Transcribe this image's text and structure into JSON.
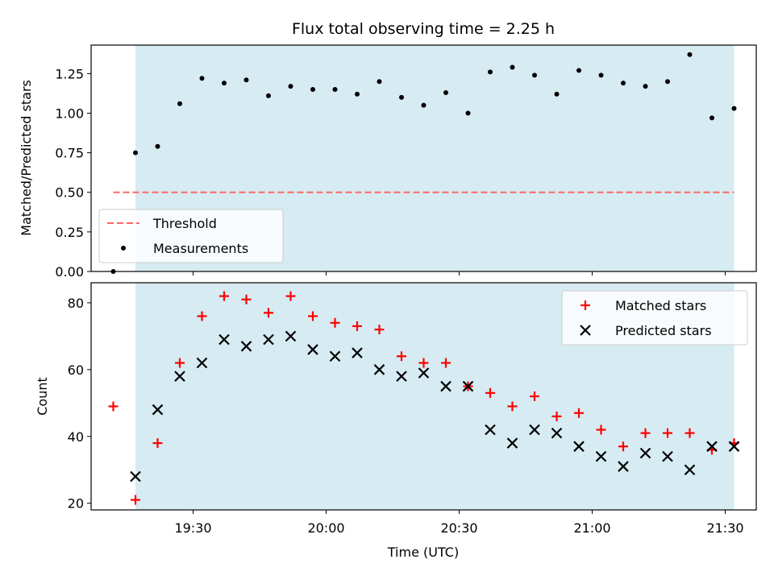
{
  "chart_data": [
    {
      "type": "scatter",
      "title": "Flux total observing time = 2.25 h",
      "xlabel": "",
      "ylabel": "Matched/Predicted stars",
      "xlim": [
        "19:07",
        "21:37"
      ],
      "ylim": [
        0,
        1.43
      ],
      "grid": false,
      "shaded_span": {
        "start": "19:17",
        "end": "21:32",
        "color": "#add8e6"
      },
      "yticks": [
        "0.00",
        "0.25",
        "0.50",
        "0.75",
        "1.00",
        "1.25"
      ],
      "xticks": [
        "19:30",
        "20:00",
        "20:30",
        "21:00",
        "21:30"
      ],
      "threshold": {
        "name": "Threshold",
        "value": 0.5,
        "x_start": "19:12",
        "x_end": "21:32",
        "color": "#ff6666"
      },
      "series": [
        {
          "name": "Measurements",
          "color": "#000000",
          "marker": "dot",
          "x": [
            "19:12",
            "19:17",
            "19:22",
            "19:27",
            "19:32",
            "19:37",
            "19:42",
            "19:47",
            "19:52",
            "19:57",
            "20:02",
            "20:07",
            "20:12",
            "20:17",
            "20:22",
            "20:27",
            "20:32",
            "20:37",
            "20:42",
            "20:47",
            "20:52",
            "20:57",
            "21:02",
            "21:07",
            "21:12",
            "21:17",
            "21:22",
            "21:27",
            "21:32"
          ],
          "values": [
            0.0,
            0.75,
            0.79,
            1.06,
            1.22,
            1.19,
            1.21,
            1.11,
            1.17,
            1.15,
            1.15,
            1.12,
            1.2,
            1.1,
            1.05,
            1.13,
            1.0,
            1.26,
            1.29,
            1.24,
            1.12,
            1.27,
            1.24,
            1.19,
            1.17,
            1.2,
            1.37,
            0.97,
            1.03
          ]
        }
      ],
      "legend": {
        "placement": "lower-left"
      }
    },
    {
      "type": "scatter",
      "title": "",
      "xlabel": "Time (UTC)",
      "ylabel": "Count",
      "xlim": [
        "19:07",
        "21:37"
      ],
      "ylim": [
        18,
        86
      ],
      "grid": false,
      "shaded_span": {
        "start": "19:17",
        "end": "21:32",
        "color": "#add8e6"
      },
      "yticks": [
        "20",
        "40",
        "60",
        "80"
      ],
      "xticks": [
        "19:30",
        "20:00",
        "20:30",
        "21:00",
        "21:30"
      ],
      "series": [
        {
          "name": "Matched stars",
          "color": "#ff0000",
          "marker": "plus",
          "x": [
            "19:12",
            "19:17",
            "19:22",
            "19:27",
            "19:32",
            "19:37",
            "19:42",
            "19:47",
            "19:52",
            "19:57",
            "20:02",
            "20:07",
            "20:12",
            "20:17",
            "20:22",
            "20:27",
            "20:32",
            "20:37",
            "20:42",
            "20:47",
            "20:52",
            "20:57",
            "21:02",
            "21:07",
            "21:12",
            "21:17",
            "21:22",
            "21:27",
            "21:32"
          ],
          "values": [
            49,
            21,
            38,
            62,
            76,
            82,
            81,
            77,
            82,
            76,
            74,
            73,
            72,
            64,
            62,
            62,
            55,
            53,
            49,
            52,
            46,
            47,
            42,
            37,
            41,
            41,
            41,
            36,
            38
          ]
        },
        {
          "name": "Predicted stars",
          "color": "#000000",
          "marker": "x",
          "x": [
            "19:17",
            "19:22",
            "19:27",
            "19:32",
            "19:37",
            "19:42",
            "19:47",
            "19:52",
            "19:57",
            "20:02",
            "20:07",
            "20:12",
            "20:17",
            "20:22",
            "20:27",
            "20:32",
            "20:37",
            "20:42",
            "20:47",
            "20:52",
            "20:57",
            "21:02",
            "21:07",
            "21:12",
            "21:17",
            "21:22",
            "21:27",
            "21:32"
          ],
          "values": [
            28,
            48,
            58,
            62,
            69,
            67,
            69,
            70,
            66,
            64,
            65,
            60,
            58,
            59,
            55,
            55,
            42,
            38,
            42,
            41,
            37,
            34,
            31,
            35,
            34,
            30,
            37,
            37
          ]
        }
      ],
      "legend": {
        "placement": "top-right"
      }
    }
  ]
}
